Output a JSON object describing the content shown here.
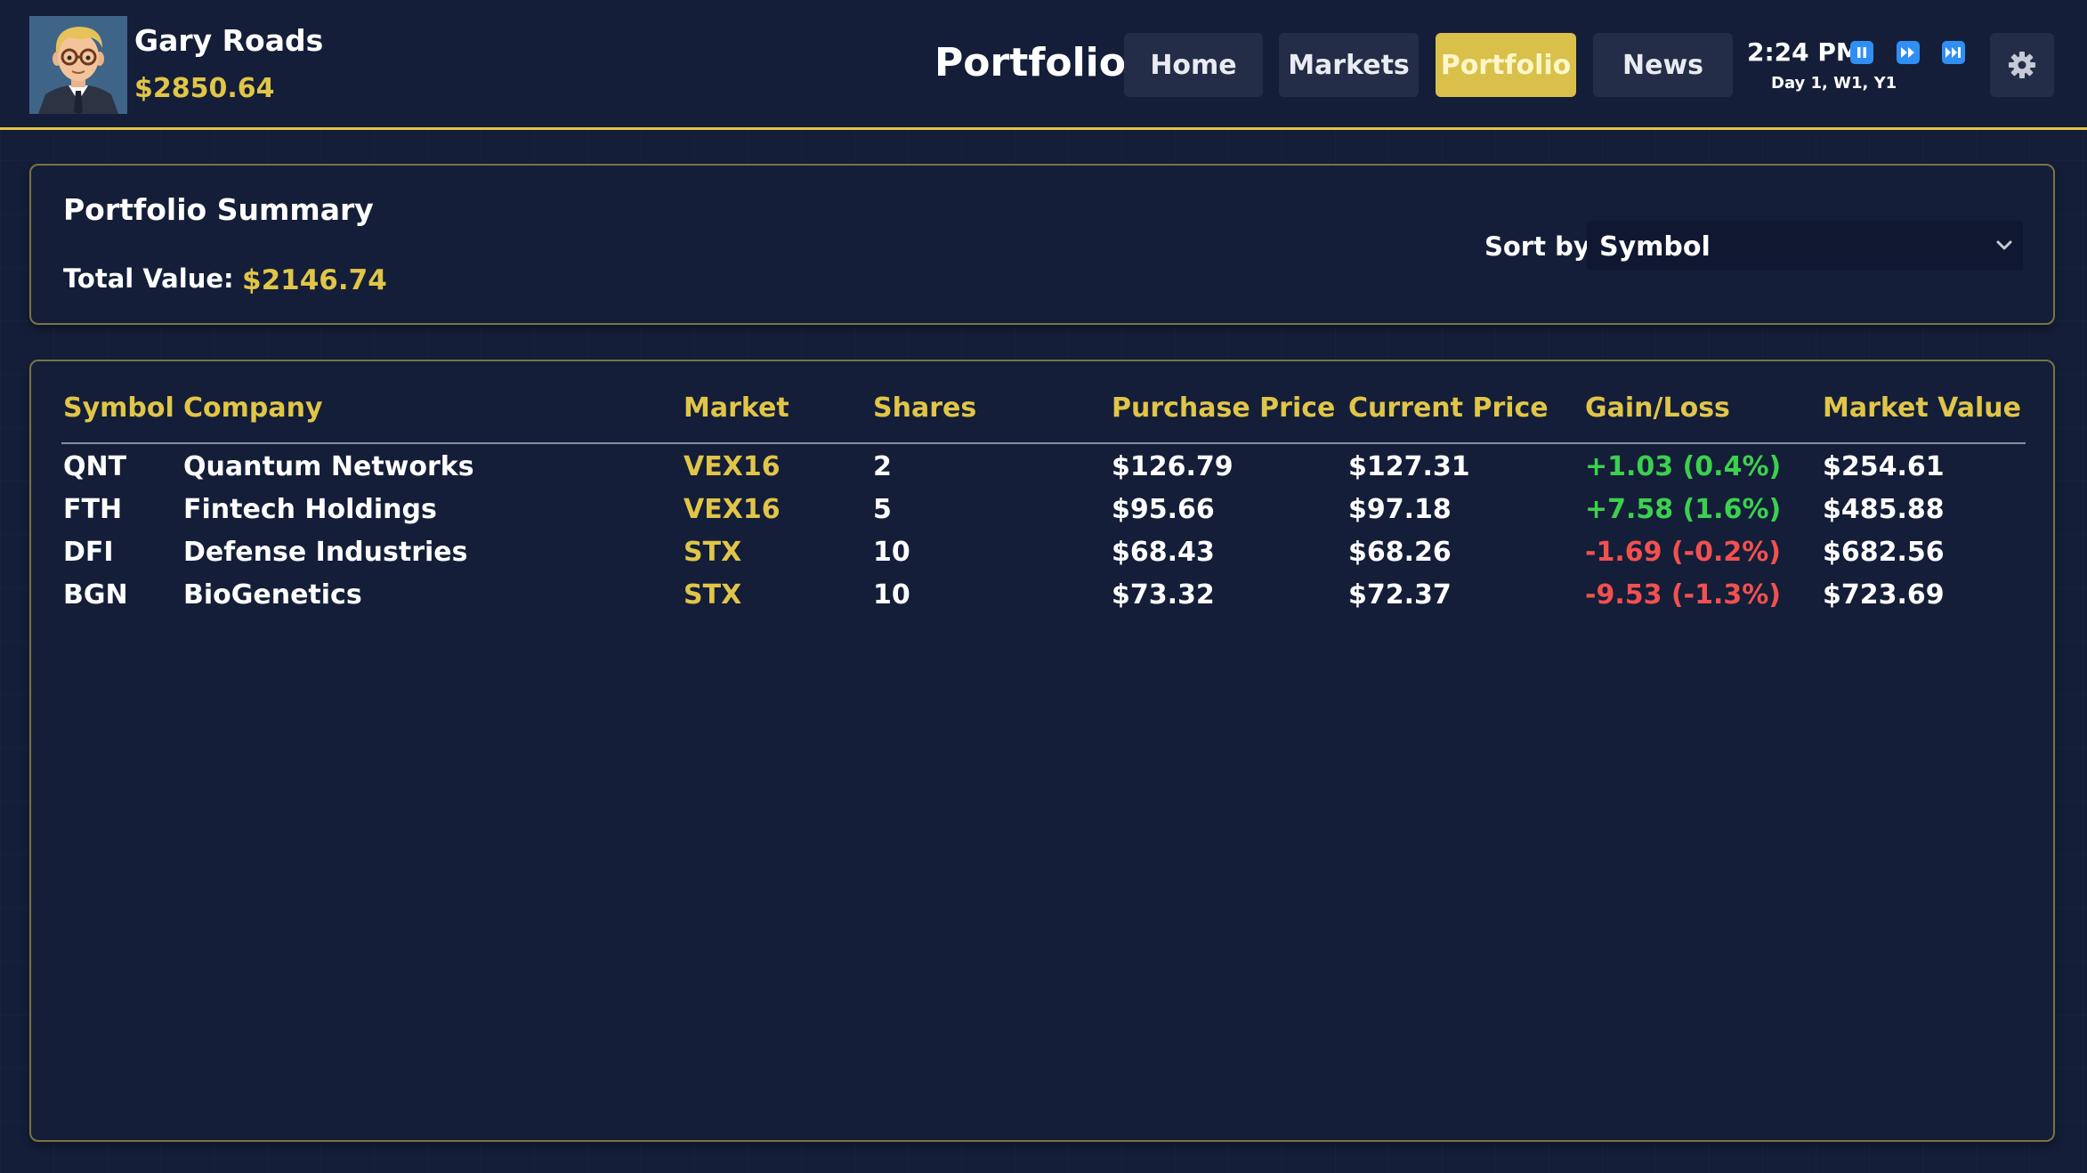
{
  "player": {
    "name": "Gary Roads",
    "cash": "$2850.64"
  },
  "header": {
    "title": "Portfolio",
    "nav": [
      {
        "label": "Home",
        "active": false
      },
      {
        "label": "Markets",
        "active": false
      },
      {
        "label": "Portfolio",
        "active": true
      },
      {
        "label": "News",
        "active": false
      }
    ],
    "time": "2:24 PM",
    "date": "Day 1, W1, Y1",
    "controls": [
      "pause-icon",
      "fast-forward-icon",
      "skip-forward-icon"
    ],
    "settings_icon": "gear-icon"
  },
  "summary": {
    "title": "Portfolio Summary",
    "total_label": "Total Value:",
    "total_value": "$2146.74",
    "sort_label": "Sort by:",
    "sort_value": "Symbol"
  },
  "table": {
    "headers": [
      "Symbol",
      "Company",
      "Market",
      "Shares",
      "Purchase Price",
      "Current Price",
      "Gain/Loss",
      "Market Value"
    ],
    "rows": [
      {
        "symbol": "QNT",
        "company": "Quantum Networks",
        "market": "VEX16",
        "shares": "2",
        "purchase": "$126.79",
        "current": "$127.31",
        "gain": "+1.03 (0.4%)",
        "gain_type": "gain",
        "value": "$254.61"
      },
      {
        "symbol": "FTH",
        "company": "Fintech Holdings",
        "market": "VEX16",
        "shares": "5",
        "purchase": "$95.66",
        "current": "$97.18",
        "gain": "+7.58 (1.6%)",
        "gain_type": "gain",
        "value": "$485.88"
      },
      {
        "symbol": "DFI",
        "company": "Defense Industries",
        "market": "STX",
        "shares": "10",
        "purchase": "$68.43",
        "current": "$68.26",
        "gain": "-1.69 (-0.2%)",
        "gain_type": "loss",
        "value": "$682.56"
      },
      {
        "symbol": "BGN",
        "company": "BioGenetics",
        "market": "STX",
        "shares": "10",
        "purchase": "$73.32",
        "current": "$72.37",
        "gain": "-9.53 (-1.3%)",
        "gain_type": "loss",
        "value": "$723.69"
      }
    ]
  },
  "colors": {
    "background": "#141e38",
    "accent": "#e0c548",
    "gain": "#3cd04f",
    "loss": "#f25050",
    "control": "#2f8ff2"
  }
}
